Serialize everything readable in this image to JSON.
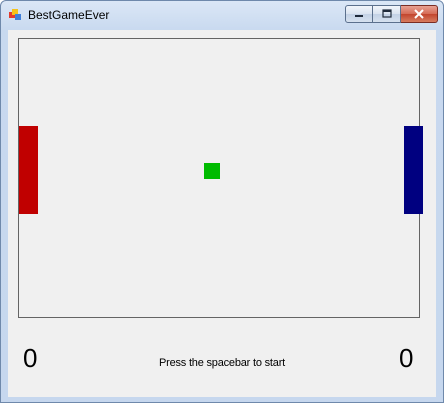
{
  "window": {
    "title": "BestGameEver",
    "icon": "winforms-app-icon",
    "controls": {
      "minimize_icon": "minimize-icon",
      "maximize_icon": "maximize-icon",
      "close_icon": "close-icon"
    }
  },
  "game": {
    "left_score": "0",
    "right_score": "0",
    "status_text": "Press the spacebar to start",
    "colors": {
      "left_paddle": "#c00000",
      "right_paddle": "#000080",
      "ball": "#00bb00",
      "court_border": "#646464",
      "background": "#f0f0f0"
    }
  }
}
